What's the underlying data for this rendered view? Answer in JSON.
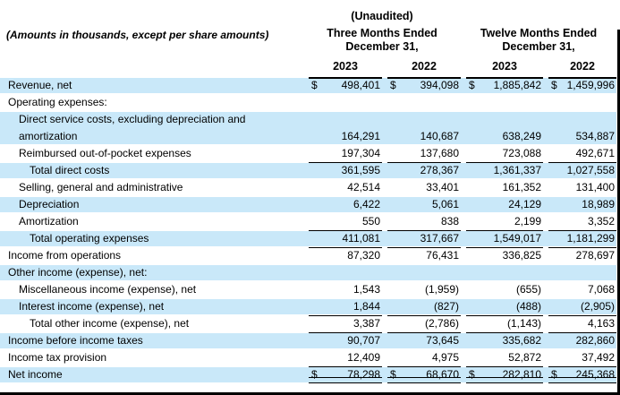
{
  "header": {
    "left_note": "(Amounts in thousands, except per share amounts)",
    "unaudited": "(Unaudited)",
    "group_three_months": {
      "line1": "Three Months Ended",
      "line2": "December 31,"
    },
    "group_twelve_months": {
      "line1": "Twelve Months Ended",
      "line2": "December 31,"
    },
    "years": [
      "2023",
      "2022",
      "2023",
      "2022"
    ]
  },
  "colors": {
    "highlight": "#c9e8f9",
    "text": "#000000",
    "rule": "#000000"
  },
  "rows": [
    {
      "label": "Revenue, net",
      "indent": 0,
      "shaded": true,
      "dollar": true,
      "values": [
        "498,401",
        "394,098",
        "1,885,842",
        "1,459,996"
      ]
    },
    {
      "label": "Operating expenses:",
      "indent": 0,
      "shaded": false,
      "values": null
    },
    {
      "label": "Direct service costs, excluding depreciation and amortization",
      "indent": 1,
      "shaded": true,
      "tall": true,
      "values": [
        "164,291",
        "140,687",
        "638,249",
        "534,887"
      ]
    },
    {
      "label": "Reimbursed out-of-pocket expenses",
      "indent": 1,
      "shaded": false,
      "rule_bottom": "single",
      "values": [
        "197,304",
        "137,680",
        "723,088",
        "492,671"
      ]
    },
    {
      "label": "Total direct costs",
      "indent": 2,
      "shaded": true,
      "values": [
        "361,595",
        "278,367",
        "1,361,337",
        "1,027,558"
      ]
    },
    {
      "label": "Selling, general and administrative",
      "indent": 1,
      "shaded": false,
      "values": [
        "42,514",
        "33,401",
        "161,352",
        "131,400"
      ]
    },
    {
      "label": "Depreciation",
      "indent": 1,
      "shaded": true,
      "values": [
        "6,422",
        "5,061",
        "24,129",
        "18,989"
      ]
    },
    {
      "label": "Amortization",
      "indent": 1,
      "shaded": false,
      "rule_bottom": "single",
      "values": [
        "550",
        "838",
        "2,199",
        "3,352"
      ]
    },
    {
      "label": "Total operating expenses",
      "indent": 2,
      "shaded": true,
      "rule_bottom": "single",
      "values": [
        "411,081",
        "317,667",
        "1,549,017",
        "1,181,299"
      ]
    },
    {
      "label": "Income from operations",
      "indent": 0,
      "shaded": false,
      "values": [
        "87,320",
        "76,431",
        "336,825",
        "278,697"
      ]
    },
    {
      "label": "Other income (expense), net:",
      "indent": 0,
      "shaded": true,
      "values": null
    },
    {
      "label": "Miscellaneous income (expense), net",
      "indent": 1,
      "shaded": false,
      "values": [
        "1,543",
        "(1,959)",
        "(655)",
        "7,068"
      ]
    },
    {
      "label": "Interest income (expense), net",
      "indent": 1,
      "shaded": true,
      "rule_bottom": "single",
      "values": [
        "1,844",
        "(827)",
        "(488)",
        "(2,905)"
      ]
    },
    {
      "label": "Total other income (expense), net",
      "indent": 2,
      "shaded": false,
      "rule_bottom": "single",
      "values": [
        "3,387",
        "(2,786)",
        "(1,143)",
        "4,163"
      ]
    },
    {
      "label": "Income before income taxes",
      "indent": 0,
      "shaded": true,
      "values": [
        "90,707",
        "73,645",
        "335,682",
        "282,860"
      ]
    },
    {
      "label": "Income tax provision",
      "indent": 0,
      "shaded": false,
      "rule_bottom": "single",
      "values": [
        "12,409",
        "4,975",
        "52,872",
        "37,492"
      ]
    },
    {
      "label": "Net income",
      "indent": 0,
      "shaded": true,
      "dollar": true,
      "rule_bottom": "double",
      "values": [
        "78,298",
        "68,670",
        "282,810",
        "245,368"
      ]
    }
  ]
}
